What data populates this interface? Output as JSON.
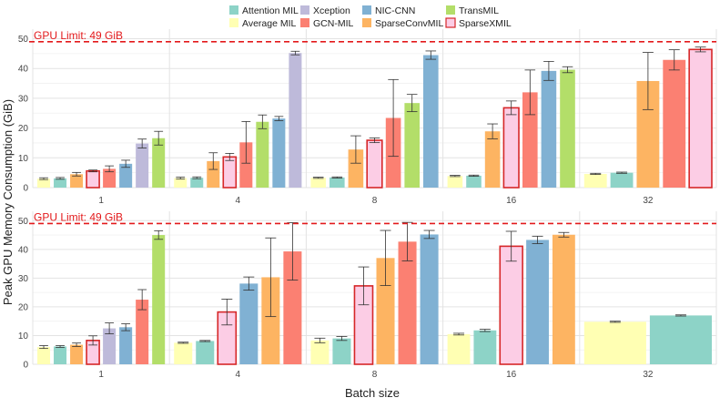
{
  "legend": [
    {
      "name": "Attention MIL",
      "color": "#8dd3c7"
    },
    {
      "name": "Average MIL",
      "color": "#ffffb3"
    },
    {
      "name": "Xception",
      "color": "#bebada"
    },
    {
      "name": "GCN-MIL",
      "color": "#fb8072"
    },
    {
      "name": "NIC-CNN",
      "color": "#80b1d3"
    },
    {
      "name": "SparseConvMIL",
      "color": "#fdb462"
    },
    {
      "name": "TransMIL",
      "color": "#b3de69"
    },
    {
      "name": "SparseXMIL",
      "color": "#fccde5"
    }
  ],
  "highlight_edge_color": "#d62728",
  "limit_color": "#e31a1c",
  "limit_label": "GPU Limit: 49 GiB",
  "ylabel": "Peak GPU Memory Consumption (GiB)",
  "xlabel": "Batch size",
  "chart_data": [
    {
      "type": "bar",
      "name": "top",
      "ylim": [
        0,
        52
      ],
      "yticks": [
        0,
        10,
        20,
        30,
        40,
        50
      ],
      "limit": 49,
      "groups": [
        {
          "label": "1",
          "bars": [
            {
              "model": "Average MIL",
              "value": 3.0,
              "err": 0.3
            },
            {
              "model": "Attention MIL",
              "value": 3.1,
              "err": 0.3
            },
            {
              "model": "SparseConvMIL",
              "value": 4.5,
              "err": 0.6
            },
            {
              "model": "SparseXMIL",
              "value": 5.6,
              "err": 0.3
            },
            {
              "model": "GCN-MIL",
              "value": 6.3,
              "err": 1.0
            },
            {
              "model": "NIC-CNN",
              "value": 8.0,
              "err": 1.2
            },
            {
              "model": "Xception",
              "value": 14.8,
              "err": 1.5
            },
            {
              "model": "TransMIL",
              "value": 16.6,
              "err": 2.3
            }
          ]
        },
        {
          "label": "4",
          "bars": [
            {
              "model": "Average MIL",
              "value": 3.2,
              "err": 0.3
            },
            {
              "model": "Attention MIL",
              "value": 3.3,
              "err": 0.3
            },
            {
              "model": "SparseConvMIL",
              "value": 8.9,
              "err": 2.8
            },
            {
              "model": "SparseXMIL",
              "value": 10.3,
              "err": 1.2
            },
            {
              "model": "GCN-MIL",
              "value": 15.2,
              "err": 7.0
            },
            {
              "model": "TransMIL",
              "value": 22.1,
              "err": 2.3
            },
            {
              "model": "NIC-CNN",
              "value": 23.2,
              "err": 0.7
            },
            {
              "model": "Xception",
              "value": 45.2,
              "err": 0.6
            }
          ]
        },
        {
          "label": "8",
          "bars": [
            {
              "model": "Average MIL",
              "value": 3.3,
              "err": 0.2
            },
            {
              "model": "Attention MIL",
              "value": 3.4,
              "err": 0.2
            },
            {
              "model": "SparseConvMIL",
              "value": 12.8,
              "err": 4.6
            },
            {
              "model": "SparseXMIL",
              "value": 15.9,
              "err": 0.8
            },
            {
              "model": "GCN-MIL",
              "value": 23.4,
              "err": 12.9
            },
            {
              "model": "TransMIL",
              "value": 28.4,
              "err": 2.9
            },
            {
              "model": "NIC-CNN",
              "value": 44.5,
              "err": 1.4
            }
          ]
        },
        {
          "label": "16",
          "bars": [
            {
              "model": "Average MIL",
              "value": 3.9,
              "err": 0.2
            },
            {
              "model": "Attention MIL",
              "value": 4.0,
              "err": 0.2
            },
            {
              "model": "SparseConvMIL",
              "value": 18.9,
              "err": 2.5
            },
            {
              "model": "SparseXMIL",
              "value": 26.8,
              "err": 2.3
            },
            {
              "model": "GCN-MIL",
              "value": 32.0,
              "err": 7.5
            },
            {
              "model": "NIC-CNN",
              "value": 39.2,
              "err": 3.2
            },
            {
              "model": "TransMIL",
              "value": 39.6,
              "err": 1.0
            }
          ]
        },
        {
          "label": "32",
          "bars": [
            {
              "model": "Average MIL",
              "value": 4.6,
              "err": 0.2
            },
            {
              "model": "Attention MIL",
              "value": 5.0,
              "err": 0.2
            },
            {
              "model": "SparseConvMIL",
              "value": 35.8,
              "err": 9.6
            },
            {
              "model": "GCN-MIL",
              "value": 42.9,
              "err": 3.4
            },
            {
              "model": "SparseXMIL",
              "value": 46.4,
              "err": 0.8
            }
          ]
        }
      ]
    },
    {
      "type": "bar",
      "name": "bottom",
      "ylim": [
        0,
        52
      ],
      "yticks": [
        0,
        10,
        20,
        30,
        40,
        50
      ],
      "limit": 49,
      "groups": [
        {
          "label": "1",
          "bars": [
            {
              "model": "Average MIL",
              "value": 6.0,
              "err": 0.5
            },
            {
              "model": "Attention MIL",
              "value": 6.2,
              "err": 0.3
            },
            {
              "model": "SparseConvMIL",
              "value": 6.8,
              "err": 0.6
            },
            {
              "model": "SparseXMIL",
              "value": 8.3,
              "err": 1.6
            },
            {
              "model": "Xception",
              "value": 12.5,
              "err": 1.9
            },
            {
              "model": "NIC-CNN",
              "value": 12.9,
              "err": 1.2
            },
            {
              "model": "GCN-MIL",
              "value": 22.5,
              "err": 3.5
            },
            {
              "model": "TransMIL",
              "value": 45.0,
              "err": 1.5
            }
          ]
        },
        {
          "label": "4",
          "bars": [
            {
              "model": "Average MIL",
              "value": 7.5,
              "err": 0.2
            },
            {
              "model": "Attention MIL",
              "value": 8.1,
              "err": 0.2
            },
            {
              "model": "SparseXMIL",
              "value": 18.2,
              "err": 4.5
            },
            {
              "model": "NIC-CNN",
              "value": 28.1,
              "err": 2.3
            },
            {
              "model": "SparseConvMIL",
              "value": 30.3,
              "err": 13.7
            },
            {
              "model": "GCN-MIL",
              "value": 39.3,
              "err": 10.0
            }
          ]
        },
        {
          "label": "8",
          "bars": [
            {
              "model": "Average MIL",
              "value": 8.3,
              "err": 0.8
            },
            {
              "model": "Attention MIL",
              "value": 9.0,
              "err": 0.7
            },
            {
              "model": "SparseXMIL",
              "value": 27.3,
              "err": 6.6
            },
            {
              "model": "SparseConvMIL",
              "value": 37.0,
              "err": 9.6
            },
            {
              "model": "GCN-MIL",
              "value": 42.7,
              "err": 6.7
            },
            {
              "model": "NIC-CNN",
              "value": 45.2,
              "err": 1.4
            }
          ]
        },
        {
          "label": "16",
          "bars": [
            {
              "model": "Average MIL",
              "value": 10.5,
              "err": 0.3
            },
            {
              "model": "Attention MIL",
              "value": 11.8,
              "err": 0.4
            },
            {
              "model": "SparseXMIL",
              "value": 41.1,
              "err": 5.2
            },
            {
              "model": "NIC-CNN",
              "value": 43.3,
              "err": 1.3
            },
            {
              "model": "SparseConvMIL",
              "value": 45.1,
              "err": 0.8
            }
          ]
        },
        {
          "label": "32",
          "bars": [
            {
              "model": "Average MIL",
              "value": 14.8,
              "err": 0.2
            },
            {
              "model": "Attention MIL",
              "value": 17.0,
              "err": 0.2
            }
          ]
        }
      ]
    }
  ]
}
